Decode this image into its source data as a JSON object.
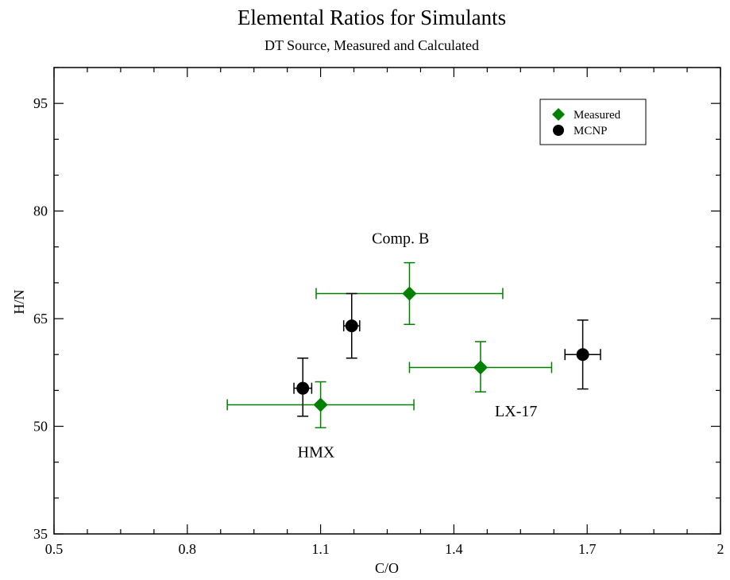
{
  "chart_data": {
    "type": "scatter",
    "title": "Elemental Ratios for Simulants",
    "subtitle": "DT Source, Measured and Calculated",
    "xlabel": "C/O",
    "ylabel": "H/N",
    "xlim": [
      0.5,
      2.0
    ],
    "ylim": [
      35,
      100
    ],
    "x_ticks": [
      {
        "value": 0.5,
        "label": "0.5"
      },
      {
        "value": 0.8,
        "label": "0.8"
      },
      {
        "value": 1.1,
        "label": "1.1"
      },
      {
        "value": 1.4,
        "label": "1.4"
      },
      {
        "value": 1.7,
        "label": "1.7"
      },
      {
        "value": 2.0,
        "label": "2"
      }
    ],
    "x_minor_step": 0.075,
    "y_ticks": [
      {
        "value": 35,
        "label": "35"
      },
      {
        "value": 50,
        "label": "50"
      },
      {
        "value": 65,
        "label": "65"
      },
      {
        "value": 80,
        "label": "80"
      },
      {
        "value": 95,
        "label": "95"
      }
    ],
    "y_minor_step": 5,
    "grid": false,
    "legend_position": "top-right",
    "series": [
      {
        "name": "Measured",
        "color": "#008000",
        "marker": "diamond",
        "points": [
          {
            "x": 1.3,
            "y": 68.5,
            "xerr": [
              0.21,
              0.21
            ],
            "yerr": [
              4.3,
              4.3
            ]
          },
          {
            "x": 1.46,
            "y": 58.2,
            "xerr": [
              0.16,
              0.16
            ],
            "yerr": [
              3.4,
              3.6
            ]
          },
          {
            "x": 1.1,
            "y": 53.0,
            "xerr": [
              0.21,
              0.21
            ],
            "yerr": [
              3.2,
              3.2
            ]
          }
        ]
      },
      {
        "name": "MCNP",
        "color": "#000000",
        "marker": "circle",
        "points": [
          {
            "x": 1.17,
            "y": 64.0,
            "xerr": [
              0.018,
              0.018
            ],
            "yerr": [
              4.5,
              4.5
            ]
          },
          {
            "x": 1.69,
            "y": 60.0,
            "xerr": [
              0.04,
              0.04
            ],
            "yerr": [
              4.8,
              4.8
            ]
          },
          {
            "x": 1.06,
            "y": 55.3,
            "xerr": [
              0.02,
              0.02
            ],
            "yerr": [
              3.9,
              4.2
            ]
          }
        ]
      }
    ],
    "annotations": [
      {
        "text": "Comp. B",
        "x": 1.28,
        "y": 75.5
      },
      {
        "text": "LX-17",
        "x": 1.54,
        "y": 51.4
      },
      {
        "text": "HMX",
        "x": 1.09,
        "y": 45.7
      }
    ]
  }
}
